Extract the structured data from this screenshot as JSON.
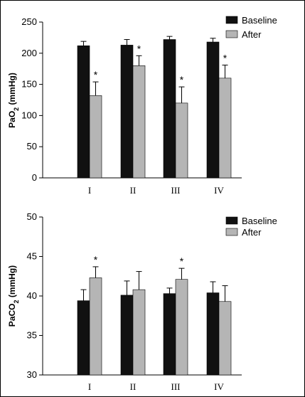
{
  "chart_data": [
    {
      "type": "bar",
      "ylabel": "PaO2 (mmHg)",
      "categories": [
        "I",
        "II",
        "III",
        "IV"
      ],
      "ylim": [
        0,
        250
      ],
      "yticks": [
        0,
        50,
        100,
        150,
        200,
        250
      ],
      "legend_position": "top-right",
      "grid": false,
      "series": [
        {
          "name": "Baseline",
          "color": "#111111",
          "values": [
            212,
            213,
            222,
            218
          ],
          "errors": [
            7,
            9,
            5,
            6
          ]
        },
        {
          "name": "After",
          "color": "#b5b5b5",
          "values": [
            132,
            180,
            120,
            160
          ],
          "errors": [
            22,
            16,
            26,
            21
          ]
        }
      ],
      "annotations": [
        {
          "category": "I",
          "series": "After",
          "text": "*"
        },
        {
          "category": "II",
          "series": "After",
          "text": "*"
        },
        {
          "category": "III",
          "series": "After",
          "text": "*"
        },
        {
          "category": "IV",
          "series": "After",
          "text": "*"
        }
      ]
    },
    {
      "type": "bar",
      "ylabel": "PaCO2 (mmHg)",
      "categories": [
        "I",
        "II",
        "III",
        "IV"
      ],
      "ylim": [
        30,
        50
      ],
      "yticks": [
        30,
        35,
        40,
        45,
        50
      ],
      "legend_position": "top-right",
      "grid": false,
      "series": [
        {
          "name": "Baseline",
          "color": "#111111",
          "values": [
            39.4,
            40.1,
            40.3,
            40.4
          ],
          "errors": [
            1.4,
            1.8,
            0.7,
            1.4
          ]
        },
        {
          "name": "After",
          "color": "#b5b5b5",
          "values": [
            42.3,
            40.8,
            42.1,
            39.3
          ],
          "errors": [
            1.4,
            2.3,
            1.4,
            2.0
          ]
        }
      ],
      "annotations": [
        {
          "category": "I",
          "series": "After",
          "text": "*"
        },
        {
          "category": "III",
          "series": "After",
          "text": "*"
        }
      ]
    }
  ]
}
